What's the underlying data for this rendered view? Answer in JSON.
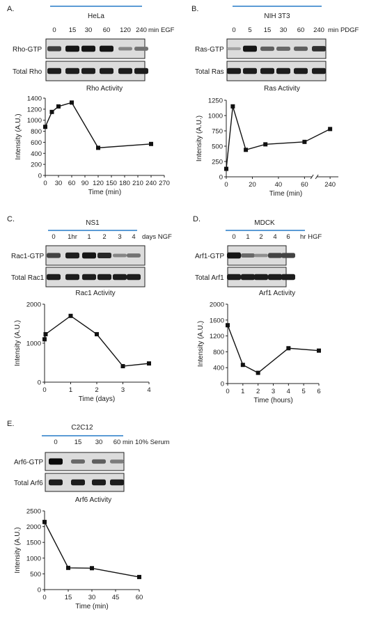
{
  "panels": [
    {
      "letter": "A.",
      "cell_line": "HeLa",
      "timepoints": [
        "0",
        "15",
        "30",
        "60",
        "120",
        "240"
      ],
      "unit_label": "min EGF",
      "blot_labels": [
        "Rho-GTP",
        "Total Rho"
      ],
      "active_band_intensity": [
        0.72,
        0.95,
        0.95,
        0.95,
        0.35,
        0.45
      ],
      "total_band_intensity": [
        0.9,
        0.9,
        0.9,
        0.9,
        0.9,
        0.9
      ]
    },
    {
      "letter": "B.",
      "cell_line": "NIH 3T3",
      "timepoints": [
        "0",
        "5",
        "15",
        "30",
        "60",
        "240"
      ],
      "unit_label": "min PDGF",
      "blot_labels": [
        "Ras-GTP",
        "Total Ras"
      ],
      "active_band_intensity": [
        0.2,
        0.95,
        0.55,
        0.5,
        0.55,
        0.8
      ],
      "total_band_intensity": [
        0.9,
        0.9,
        0.9,
        0.9,
        0.9,
        0.9
      ]
    },
    {
      "letter": "C.",
      "cell_line": "NS1",
      "timepoints": [
        "0",
        "1hr",
        "1",
        "2",
        "3",
        "4"
      ],
      "unit_label": "days NGF",
      "blot_labels": [
        "Rac1-GTP",
        "Total Rac1"
      ],
      "active_band_intensity": [
        0.7,
        0.9,
        0.95,
        0.85,
        0.35,
        0.45
      ],
      "total_band_intensity": [
        0.9,
        0.9,
        0.9,
        0.9,
        0.9,
        0.9
      ]
    },
    {
      "letter": "D.",
      "cell_line": "MDCK",
      "timepoints": [
        "0",
        "1",
        "2",
        "4",
        "6"
      ],
      "unit_label": "hr HGF",
      "blot_labels": [
        "Arf1-GTP",
        "Total Arf1"
      ],
      "active_band_intensity": [
        0.95,
        0.5,
        0.3,
        0.7,
        0.7
      ],
      "total_band_intensity": [
        0.9,
        0.9,
        0.9,
        0.9,
        0.9
      ]
    },
    {
      "letter": "E.",
      "cell_line": "C2C12",
      "timepoints": [
        "0",
        "15",
        "30",
        "60"
      ],
      "unit_label": "min 10% Serum",
      "blot_labels": [
        "Arf6-GTP",
        "Total Arf6"
      ],
      "active_band_intensity": [
        1.0,
        0.5,
        0.55,
        0.4
      ],
      "total_band_intensity": [
        0.9,
        0.9,
        0.9,
        0.9
      ]
    }
  ],
  "chart_data": [
    {
      "type": "line",
      "title": "Rho Activity",
      "xlabel": "Time (min)",
      "ylabel": "Intensity (A.U.)",
      "x": [
        0,
        15,
        30,
        60,
        120,
        240
      ],
      "y": [
        880,
        1150,
        1250,
        1320,
        500,
        570
      ],
      "xlim": [
        0,
        270
      ],
      "ylim": [
        0,
        1400
      ],
      "xticks": [
        "0",
        "30",
        "60",
        "90",
        "120",
        "150",
        "180",
        "210",
        "240",
        "270"
      ],
      "yticks": [
        "0",
        "200",
        "400",
        "600",
        "800",
        "1000",
        "1200",
        "1400"
      ]
    },
    {
      "type": "line",
      "title": "Ras Activity",
      "xlabel": "Time (min)",
      "ylabel": "Intensity (A.U.)",
      "x": [
        0,
        5,
        15,
        30,
        60,
        240
      ],
      "y": [
        130,
        1150,
        440,
        530,
        570,
        780
      ],
      "xlim": [
        0,
        240
      ],
      "ylim": [
        0,
        1250
      ],
      "broken_axis": "between 60 and 240",
      "xticks": [
        "0",
        "20",
        "40",
        "60",
        "240"
      ],
      "yticks": [
        "0",
        "250",
        "500",
        "750",
        "1000",
        "1250"
      ]
    },
    {
      "type": "line",
      "title": "Rac1 Activity",
      "xlabel": "Time (days)",
      "ylabel": "Intensity (A.U.)",
      "x": [
        0,
        0.04,
        1,
        2,
        3,
        4
      ],
      "y": [
        1100,
        1230,
        1700,
        1230,
        410,
        480
      ],
      "xlim": [
        0,
        4
      ],
      "ylim": [
        0,
        2000
      ],
      "xticks": [
        "0",
        "1",
        "2",
        "3",
        "4"
      ],
      "yticks": [
        "0",
        "1000",
        "2000"
      ]
    },
    {
      "type": "line",
      "title": "Arf1 Activity",
      "xlabel": "Time (hours)",
      "ylabel": "Intensity (A.U.)",
      "x": [
        0,
        1,
        2,
        4,
        6
      ],
      "y": [
        1470,
        470,
        270,
        890,
        830
      ],
      "xlim": [
        0,
        6
      ],
      "ylim": [
        0,
        2000
      ],
      "xticks": [
        "0",
        "1",
        "2",
        "3",
        "4",
        "5",
        "6"
      ],
      "yticks": [
        "0",
        "400",
        "800",
        "1200",
        "1600",
        "2000"
      ]
    },
    {
      "type": "line",
      "title": "Arf6 Activity",
      "xlabel": "Time (min)",
      "ylabel": "Intensity (A.U.)",
      "x": [
        0,
        15,
        30,
        60
      ],
      "y": [
        2150,
        690,
        680,
        400
      ],
      "xlim": [
        0,
        60
      ],
      "ylim": [
        0,
        2500
      ],
      "xticks": [
        "0",
        "15",
        "30",
        "45",
        "60"
      ],
      "yticks": [
        "0",
        "500",
        "1000",
        "1500",
        "2000",
        "2500"
      ]
    }
  ]
}
